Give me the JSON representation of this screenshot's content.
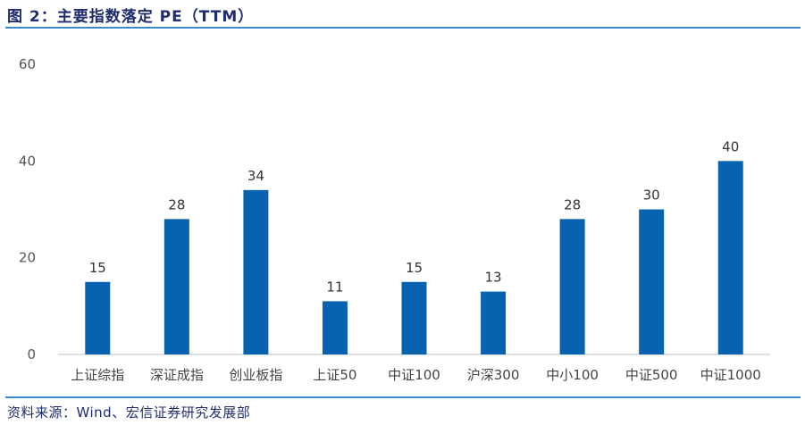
{
  "title": "图 2：主要指数落定 PE（TTM）",
  "source": "资料来源：Wind、宏信证券研究发展部",
  "colors": {
    "bar": "#0763b0",
    "title": "#1f2d6e",
    "rule": "#3a8ad0"
  },
  "chart_data": {
    "type": "bar",
    "title": "",
    "xlabel": "",
    "ylabel": "",
    "categories": [
      "上证综指",
      "深证成指",
      "创业板指",
      "上证50",
      "中证100",
      "沪深300",
      "中小100",
      "中证500",
      "中证1000"
    ],
    "values": [
      15,
      28,
      34,
      11,
      15,
      13,
      28,
      30,
      40
    ],
    "data_labels": [
      "15",
      "28",
      "34",
      "11",
      "15",
      "13",
      "28",
      "30",
      "40"
    ],
    "ylim": [
      0,
      60
    ],
    "yticks": [
      0,
      20,
      40,
      60
    ],
    "grid": false,
    "legend": "none"
  }
}
